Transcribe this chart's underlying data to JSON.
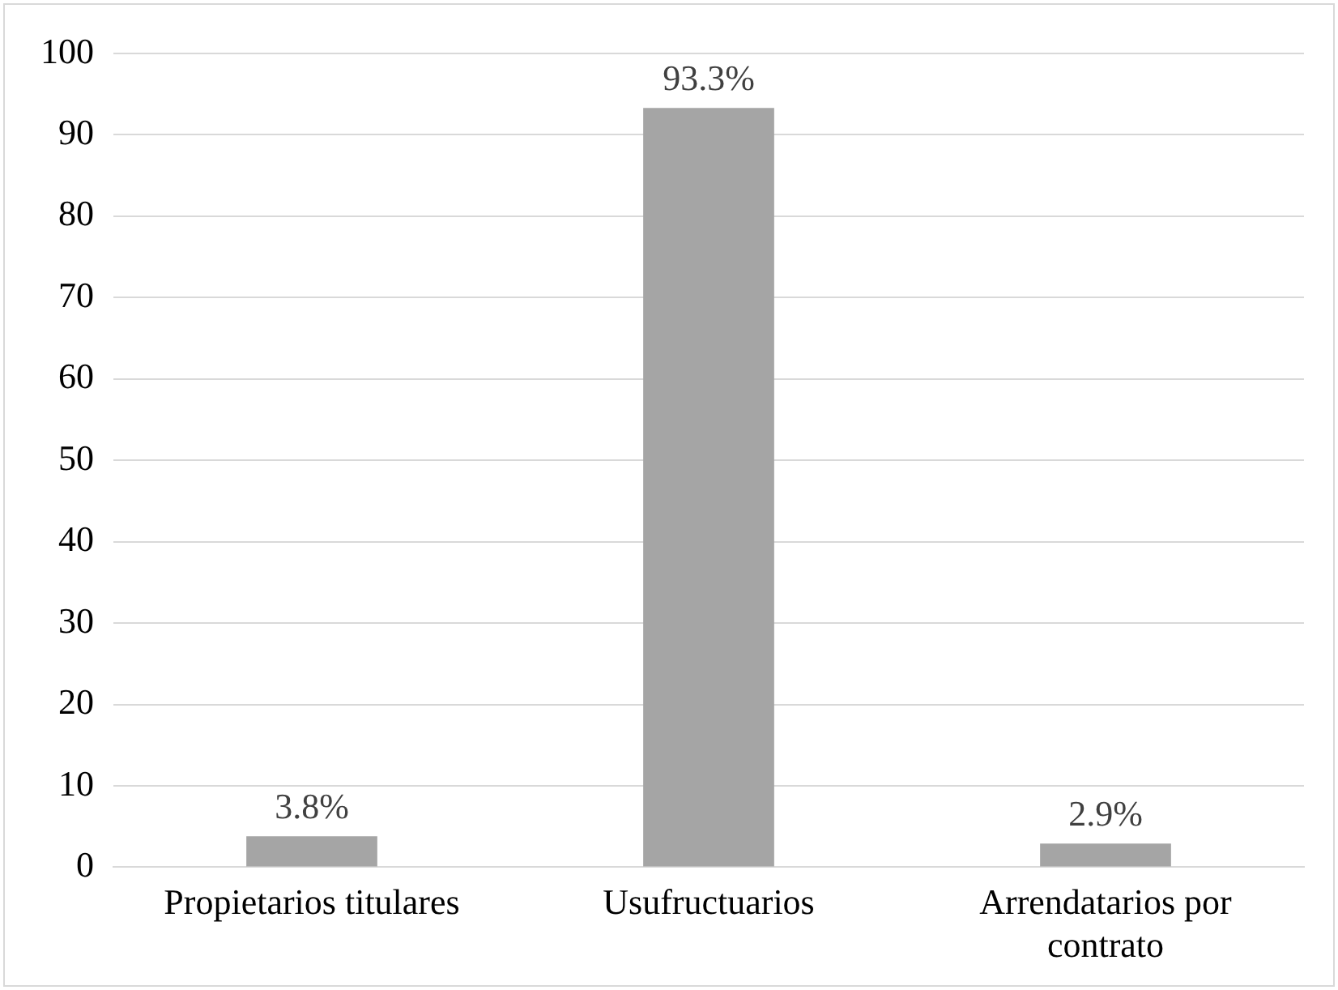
{
  "chart_data": {
    "type": "bar",
    "categories": [
      "Propietarios titulares",
      "Usufructuarios",
      "Arrendatarios por contrato"
    ],
    "values": [
      3.8,
      93.3,
      2.9
    ],
    "value_labels": [
      "3.8%",
      "93.3%",
      "2.9%"
    ],
    "color": "#a5a5a5",
    "ylim": [
      0,
      100
    ],
    "yticks": [
      0,
      10,
      20,
      30,
      40,
      50,
      60,
      70,
      80,
      90,
      100
    ],
    "grid": "y",
    "legend": false
  }
}
